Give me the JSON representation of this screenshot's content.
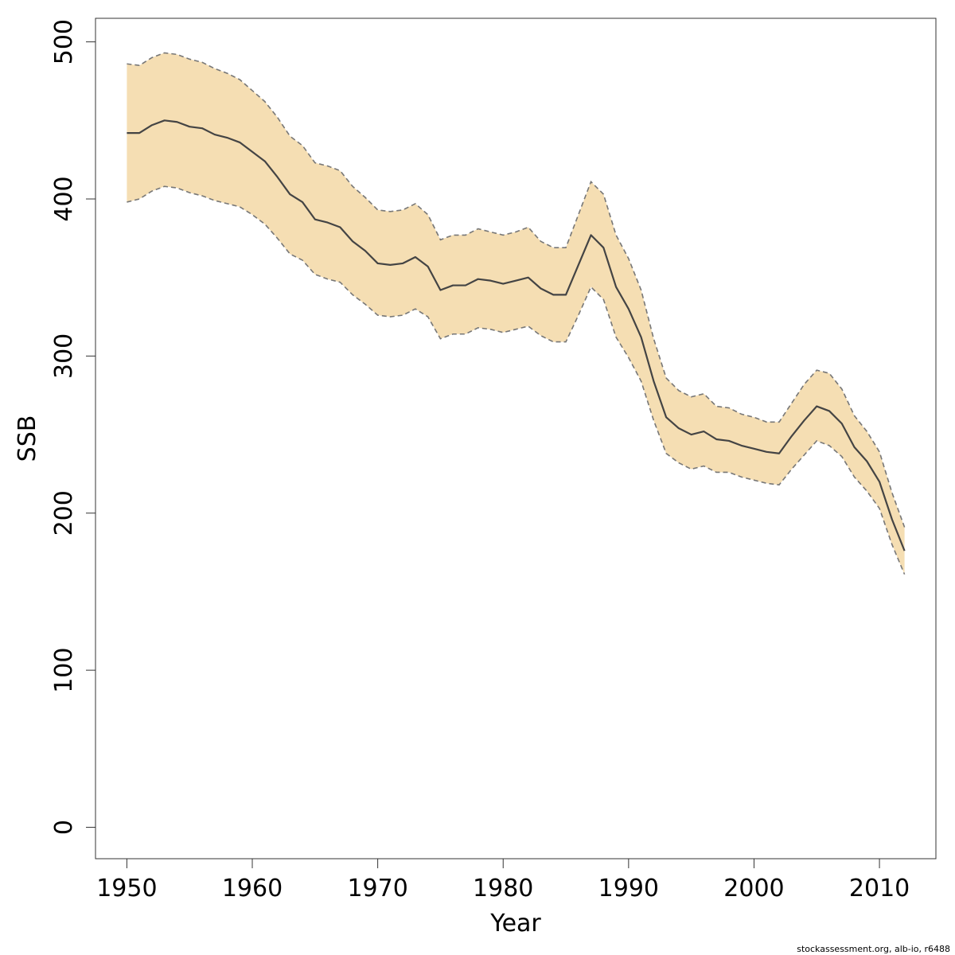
{
  "colors": {
    "band_fill": "#f5deb3",
    "band_edge": "#777777",
    "median_line": "#444444",
    "axis": "#333333",
    "background": "#ffffff"
  },
  "footer": "stockassessment.org, alb-io, r6488",
  "chart_data": {
    "type": "area",
    "xlabel": "Year",
    "ylabel": "SSB",
    "xlim": [
      1947.5,
      2014.5
    ],
    "ylim": [
      -20,
      515
    ],
    "x_ticks": [
      1950,
      1960,
      1970,
      1980,
      1990,
      2000,
      2010
    ],
    "y_ticks": [
      0,
      100,
      200,
      300,
      400,
      500
    ],
    "grid": false,
    "legend": "none",
    "x": [
      1950,
      1951,
      1952,
      1953,
      1954,
      1955,
      1956,
      1957,
      1958,
      1959,
      1960,
      1961,
      1962,
      1963,
      1964,
      1965,
      1966,
      1967,
      1968,
      1969,
      1970,
      1971,
      1972,
      1973,
      1974,
      1975,
      1976,
      1977,
      1978,
      1979,
      1980,
      1981,
      1982,
      1983,
      1984,
      1985,
      1986,
      1987,
      1988,
      1989,
      1990,
      1991,
      1992,
      1993,
      1994,
      1995,
      1996,
      1997,
      1998,
      1999,
      2000,
      2001,
      2002,
      2003,
      2004,
      2005,
      2006,
      2007,
      2008,
      2009,
      2010,
      2011,
      2012
    ],
    "series": [
      {
        "values": [
          442,
          442,
          447,
          450,
          449,
          446,
          445,
          441,
          439,
          436,
          430,
          424,
          414,
          403,
          398,
          387,
          385,
          382,
          373,
          367,
          359,
          358,
          359,
          363,
          357,
          342,
          345,
          345,
          349,
          348,
          346,
          348,
          350,
          343,
          339,
          339,
          358,
          377,
          369,
          344,
          330,
          312,
          284,
          261,
          254,
          250,
          252,
          247,
          246,
          243,
          241,
          239,
          238,
          249,
          259,
          268,
          265,
          257,
          242,
          233,
          220,
          196,
          176
        ]
      }
    ],
    "band_upper": [
      486,
      485,
      490,
      493,
      492,
      489,
      487,
      483,
      480,
      476,
      469,
      462,
      452,
      440,
      434,
      423,
      421,
      418,
      408,
      401,
      393,
      392,
      393,
      397,
      390,
      374,
      377,
      377,
      381,
      379,
      377,
      379,
      382,
      373,
      369,
      369,
      390,
      411,
      403,
      377,
      362,
      342,
      311,
      286,
      278,
      274,
      276,
      268,
      267,
      263,
      261,
      258,
      258,
      270,
      282,
      291,
      289,
      279,
      262,
      252,
      239,
      213,
      191
    ],
    "band_lower": [
      398,
      400,
      405,
      408,
      407,
      404,
      402,
      399,
      397,
      395,
      390,
      384,
      375,
      365,
      361,
      352,
      349,
      347,
      339,
      333,
      326,
      325,
      326,
      330,
      325,
      311,
      314,
      314,
      318,
      317,
      315,
      317,
      319,
      313,
      309,
      309,
      326,
      344,
      336,
      312,
      299,
      284,
      259,
      238,
      232,
      228,
      230,
      226,
      226,
      223,
      221,
      219,
      218,
      228,
      237,
      246,
      243,
      236,
      223,
      214,
      203,
      180,
      161
    ]
  }
}
